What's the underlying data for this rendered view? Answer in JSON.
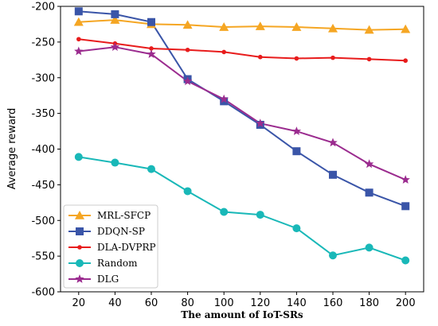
{
  "chart_data": {
    "type": "line",
    "title": "",
    "xlabel": "The amount of IoT-SRs",
    "ylabel": "Average reward",
    "x": [
      20,
      40,
      60,
      80,
      100,
      120,
      140,
      160,
      180,
      200
    ],
    "xticks": [
      "20",
      "40",
      "60",
      "80",
      "100",
      "120",
      "140",
      "160",
      "180",
      "200"
    ],
    "yticks": [
      "-600",
      "-550",
      "-500",
      "-450",
      "-400",
      "-350",
      "-300",
      "-250",
      "-200"
    ],
    "xlim": [
      10,
      210
    ],
    "ylim": [
      -600,
      -200
    ],
    "grid": false,
    "legend_position": "lower-left",
    "series": [
      {
        "name": "MRL-SFCP",
        "color": "#f5a623",
        "marker": "triangle",
        "values": [
          -222,
          -219,
          -225,
          -226,
          -229,
          -228,
          -229,
          -231,
          -233,
          -232
        ]
      },
      {
        "name": "DDQN-SP",
        "color": "#3a55a8",
        "marker": "square",
        "values": [
          -207,
          -211,
          -222,
          -302,
          -333,
          -366,
          -403,
          -436,
          -461,
          -480
        ]
      },
      {
        "name": "DLA-DVPRP",
        "color": "#e81c1c",
        "marker": "dot",
        "values": [
          -246,
          -252,
          -259,
          -261,
          -264,
          -271,
          -273,
          -272,
          -274,
          -276
        ]
      },
      {
        "name": "Random",
        "color": "#19b8b8",
        "marker": "circle",
        "values": [
          -411,
          -419,
          -428,
          -459,
          -488,
          -492,
          -511,
          -549,
          -538,
          -556
        ]
      },
      {
        "name": "DLG",
        "color": "#9b2c8f",
        "marker": "star",
        "values": [
          -263,
          -257,
          -267,
          -305,
          -330,
          -364,
          -375,
          -391,
          -421,
          -443
        ]
      }
    ]
  }
}
